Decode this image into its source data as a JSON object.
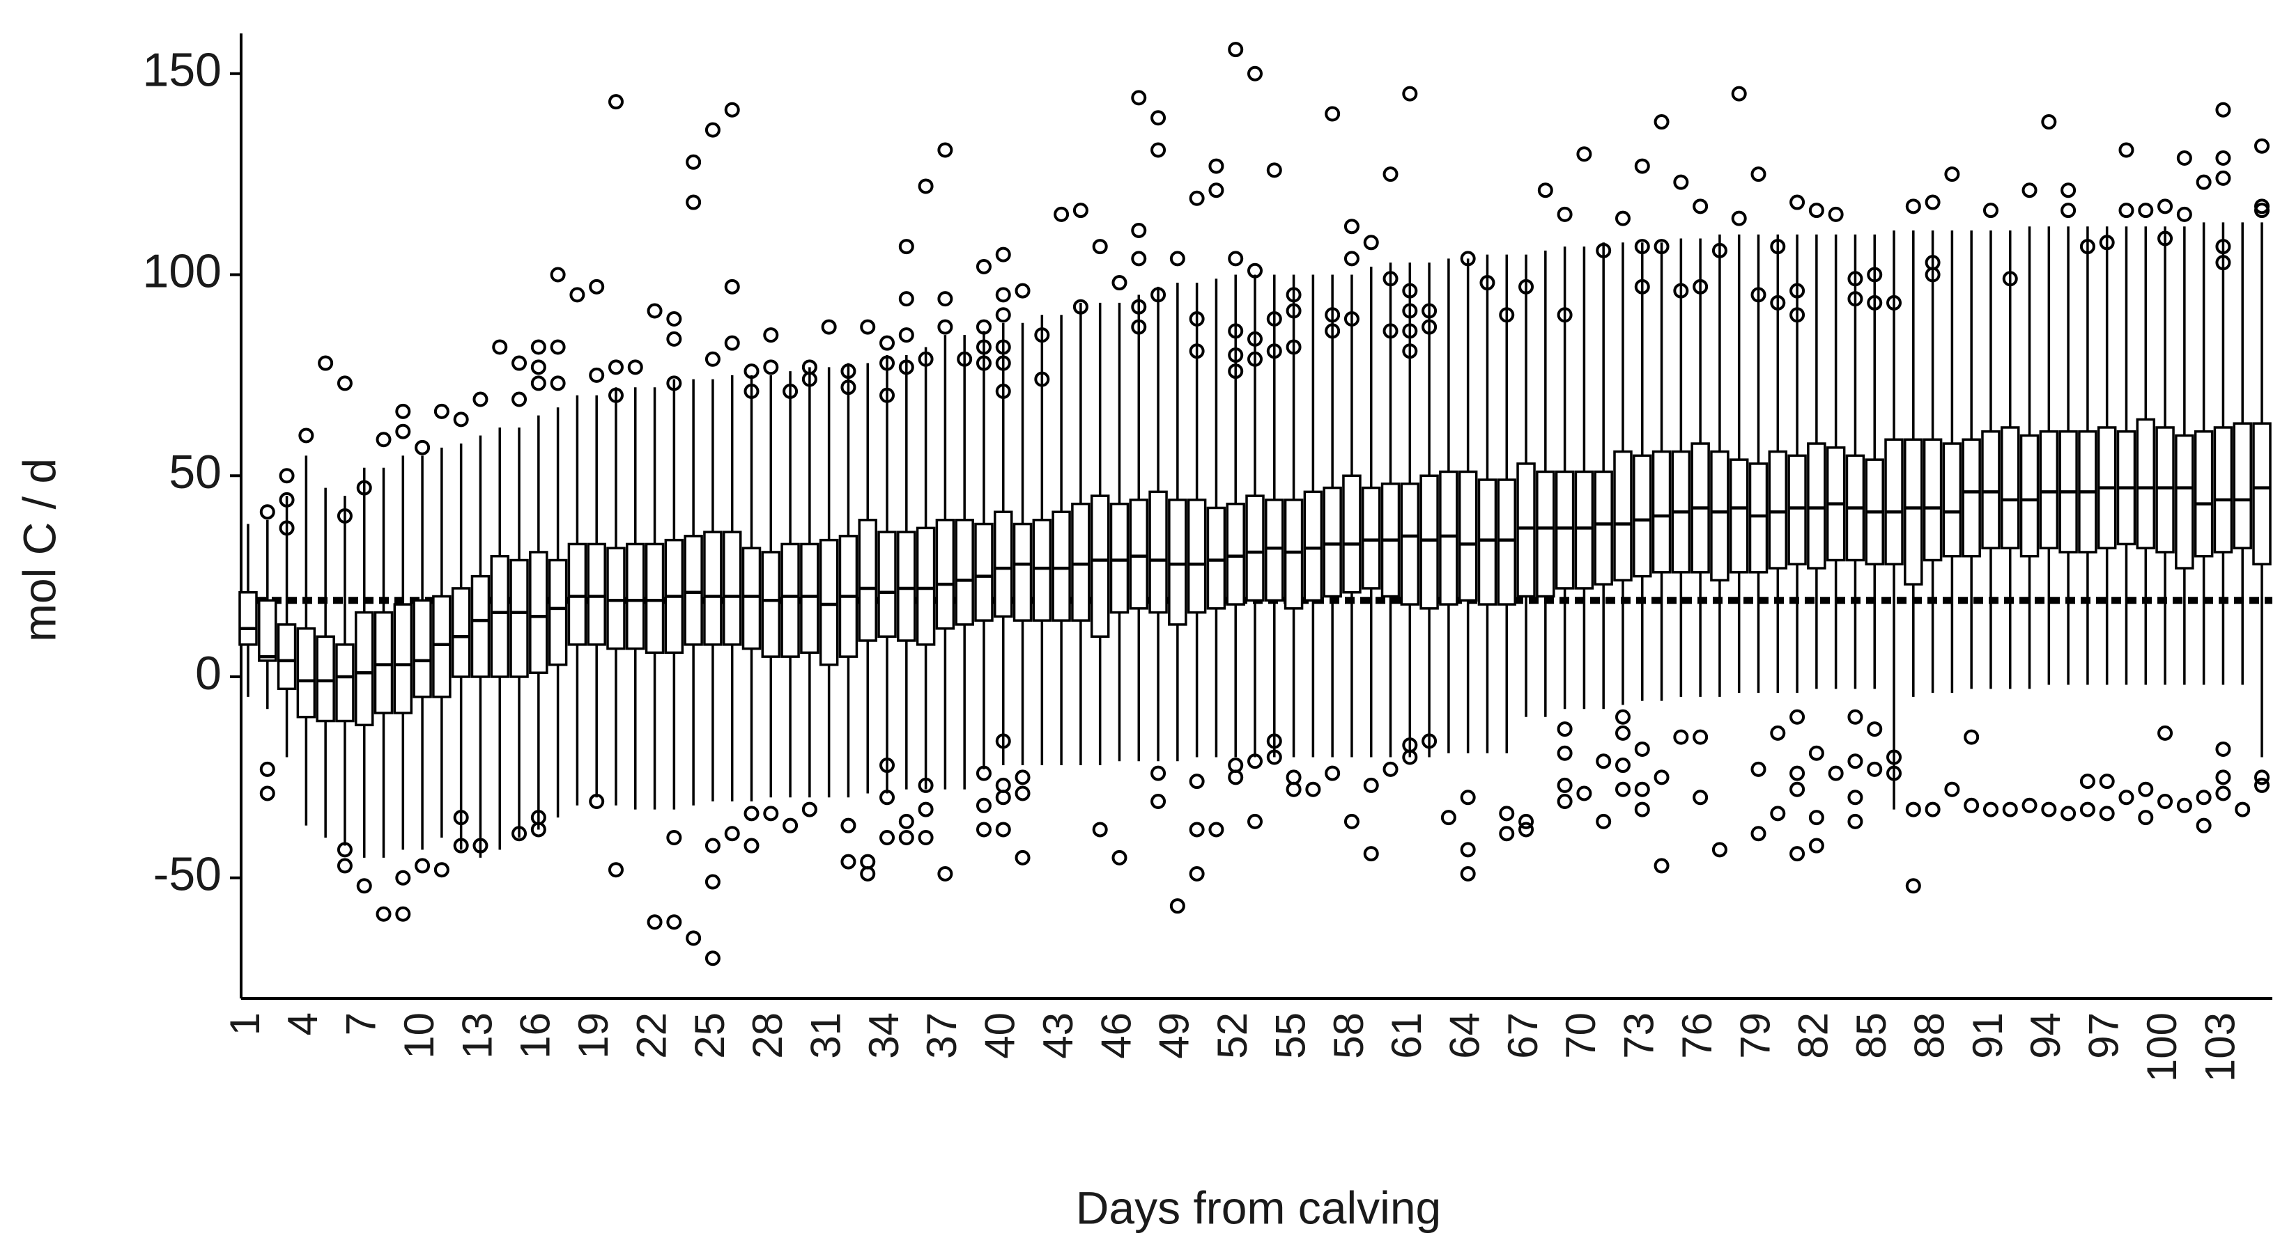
{
  "chart_data": {
    "type": "box",
    "x_label": "Days from calving",
    "y_label": "mol C / d",
    "categories": [
      "1",
      null,
      null,
      "4",
      null,
      null,
      "7",
      null,
      null,
      "10",
      null,
      null,
      "13",
      null,
      null,
      "16",
      null,
      null,
      "19",
      null,
      null,
      "22",
      null,
      null,
      "25",
      null,
      null,
      "28",
      null,
      null,
      "31",
      null,
      null,
      "34",
      null,
      null,
      "37",
      null,
      null,
      "40",
      null,
      null,
      "43",
      null,
      null,
      "46",
      null,
      null,
      "49",
      null,
      null,
      "52",
      null,
      null,
      "55",
      null,
      null,
      "58",
      null,
      null,
      "61",
      null,
      null,
      "64",
      null,
      null,
      "67",
      null,
      null,
      "70",
      null,
      null,
      "73",
      null,
      null,
      "76",
      null,
      null,
      "79",
      null,
      null,
      "82",
      null,
      null,
      "85",
      null,
      null,
      "88",
      null,
      null,
      "91",
      null,
      null,
      "94",
      null,
      null,
      "97",
      null,
      null,
      "100",
      null,
      null,
      "103",
      null,
      null
    ],
    "low": [
      -5,
      -8,
      -20,
      -37,
      -40,
      -42,
      -45,
      -45,
      -43,
      -43,
      -40,
      -43,
      -45,
      -43,
      -40,
      -38,
      -35,
      -32,
      -30,
      -32,
      -33,
      -33,
      -33,
      -32,
      -31,
      -31,
      -31,
      -30,
      -30,
      -30,
      -30,
      -30,
      -29,
      -29,
      -28,
      -28,
      -28,
      -28,
      -23,
      -22,
      -22,
      -22,
      -22,
      -22,
      -22,
      -21,
      -21,
      -21,
      -21,
      -20,
      -20,
      -20,
      -20,
      -20,
      -20,
      -20,
      -20,
      -20,
      -20,
      -20,
      -20,
      -20,
      -19,
      -19,
      -19,
      -19,
      -10,
      -10,
      -8,
      -8,
      -8,
      -7,
      -6,
      -6,
      -5,
      -5,
      -5,
      -4,
      -4,
      -4,
      -4,
      -3,
      -3,
      -3,
      -3,
      -33,
      -5,
      -4,
      -4,
      -3,
      -3,
      -3,
      -3,
      -2,
      -2,
      -2,
      -2,
      -2,
      -2,
      -2,
      -2,
      -2,
      -2,
      -2,
      -20
    ],
    "q1": [
      8,
      4,
      -3,
      -10,
      -11,
      -11,
      -12,
      -9,
      -9,
      -5,
      -5,
      0,
      0,
      0,
      0,
      1,
      3,
      8,
      8,
      7,
      7,
      6,
      6,
      8,
      8,
      8,
      7,
      5,
      5,
      6,
      3,
      5,
      9,
      10,
      9,
      8,
      12,
      13,
      14,
      15,
      14,
      14,
      14,
      14,
      10,
      16,
      17,
      16,
      13,
      16,
      17,
      18,
      19,
      19,
      17,
      19,
      20,
      21,
      22,
      20,
      18,
      17,
      18,
      19,
      18,
      18,
      20,
      20,
      22,
      22,
      23,
      24,
      25,
      26,
      26,
      26,
      24,
      26,
      26,
      27,
      28,
      27,
      29,
      29,
      28,
      28,
      23,
      29,
      30,
      30,
      32,
      32,
      30,
      32,
      31,
      31,
      32,
      33,
      32,
      31,
      27,
      30,
      31,
      32,
      28
    ],
    "median": [
      12,
      5,
      4,
      -1,
      -1,
      0,
      1,
      3,
      3,
      4,
      8,
      10,
      14,
      16,
      16,
      15,
      17,
      20,
      20,
      19,
      19,
      19,
      20,
      21,
      20,
      20,
      20,
      19,
      20,
      20,
      18,
      20,
      22,
      21,
      22,
      22,
      23,
      24,
      25,
      27,
      28,
      27,
      27,
      28,
      29,
      29,
      30,
      29,
      28,
      28,
      29,
      30,
      31,
      32,
      31,
      32,
      33,
      33,
      34,
      34,
      35,
      34,
      35,
      33,
      34,
      34,
      37,
      37,
      37,
      37,
      38,
      38,
      39,
      40,
      41,
      42,
      41,
      42,
      40,
      41,
      42,
      42,
      43,
      42,
      41,
      41,
      42,
      42,
      41,
      46,
      46,
      44,
      44,
      46,
      46,
      46,
      47,
      47,
      47,
      47,
      47,
      43,
      44,
      44,
      47
    ],
    "q3": [
      21,
      19,
      13,
      12,
      10,
      8,
      16,
      16,
      18,
      19,
      20,
      22,
      25,
      30,
      29,
      31,
      29,
      33,
      33,
      32,
      33,
      33,
      34,
      35,
      36,
      36,
      32,
      31,
      33,
      33,
      34,
      35,
      39,
      36,
      36,
      37,
      39,
      39,
      38,
      41,
      38,
      39,
      41,
      43,
      45,
      43,
      44,
      46,
      44,
      44,
      42,
      43,
      45,
      44,
      44,
      46,
      47,
      50,
      47,
      48,
      48,
      50,
      51,
      51,
      49,
      49,
      53,
      51,
      51,
      51,
      51,
      56,
      55,
      56,
      56,
      58,
      56,
      54,
      53,
      56,
      55,
      58,
      57,
      55,
      54,
      59,
      59,
      59,
      58,
      59,
      61,
      62,
      60,
      61,
      61,
      61,
      62,
      61,
      64,
      62,
      60,
      61,
      62,
      63,
      63
    ],
    "high": [
      38,
      39,
      45,
      55,
      47,
      45,
      52,
      52,
      55,
      55,
      57,
      58,
      60,
      62,
      62,
      65,
      67,
      70,
      70,
      72,
      72,
      72,
      74,
      74,
      74,
      75,
      75,
      75,
      76,
      77,
      77,
      78,
      78,
      80,
      80,
      82,
      85,
      85,
      86,
      88,
      88,
      90,
      90,
      93,
      93,
      93,
      95,
      97,
      98,
      98,
      99,
      100,
      100,
      100,
      100,
      100,
      100,
      100,
      102,
      103,
      103,
      103,
      104,
      104,
      105,
      105,
      105,
      106,
      107,
      107,
      108,
      108,
      108,
      108,
      109,
      109,
      110,
      110,
      110,
      110,
      110,
      110,
      110,
      110,
      110,
      111,
      111,
      111,
      111,
      111,
      111,
      111,
      112,
      112,
      112,
      112,
      112,
      112,
      112,
      112,
      112,
      113,
      113,
      113,
      113
    ],
    "outliers": [
      [],
      [
        41,
        -23,
        -29
      ],
      [
        50,
        44,
        37
      ],
      [
        60
      ],
      [
        78
      ],
      [
        73,
        40,
        -43,
        -47
      ],
      [
        47,
        -52
      ],
      [
        59,
        -59
      ],
      [
        61,
        66,
        -50,
        -59
      ],
      [
        57,
        -47
      ],
      [
        66,
        -48
      ],
      [
        64,
        -35,
        -42
      ],
      [
        69,
        -42
      ],
      [
        82
      ],
      [
        69,
        78,
        -39
      ],
      [
        82,
        77,
        73,
        -35,
        -38
      ],
      [
        100,
        82,
        73
      ],
      [
        95
      ],
      [
        97,
        75,
        -31
      ],
      [
        143,
        70,
        77,
        -48
      ],
      [
        77
      ],
      [
        91,
        -61
      ],
      [
        89,
        84,
        73,
        -40,
        -61
      ],
      [
        128,
        118,
        -65
      ],
      [
        136,
        79,
        -51,
        -42,
        -70
      ],
      [
        141,
        97,
        83,
        -39
      ],
      [
        76,
        71,
        -34,
        -42
      ],
      [
        85,
        77,
        -34
      ],
      [
        71,
        -37
      ],
      [
        77,
        74,
        -33
      ],
      [
        87
      ],
      [
        76,
        72,
        -37,
        -46
      ],
      [
        87,
        -49,
        -46
      ],
      [
        83,
        78,
        70,
        -22,
        -30,
        -40
      ],
      [
        107,
        94,
        85,
        77,
        -40,
        -36
      ],
      [
        122,
        79,
        -33,
        -40,
        -27
      ],
      [
        131,
        94,
        87,
        -49
      ],
      [
        79
      ],
      [
        102,
        87,
        82,
        78,
        -24,
        -32,
        -38
      ],
      [
        105,
        95,
        90,
        82,
        78,
        71,
        -16,
        -27,
        -30,
        -38
      ],
      [
        96,
        -25,
        -29,
        -45
      ],
      [
        85,
        74
      ],
      [
        115
      ],
      [
        116,
        92
      ],
      [
        107,
        -38
      ],
      [
        98,
        -45
      ],
      [
        144,
        111,
        104,
        92,
        87
      ],
      [
        139,
        131,
        95,
        -24,
        -31
      ],
      [
        104,
        -57
      ],
      [
        119,
        89,
        81,
        -26,
        -38,
        -49
      ],
      [
        127,
        121,
        -38
      ],
      [
        156,
        104,
        86,
        80,
        76,
        -22,
        -25
      ],
      [
        150,
        101,
        84,
        79,
        -21,
        -36
      ],
      [
        126,
        89,
        81,
        -16,
        -20
      ],
      [
        95,
        91,
        82,
        -25,
        -28
      ],
      [
        -28
      ],
      [
        140,
        90,
        86,
        -24
      ],
      [
        112,
        104,
        89,
        -36
      ],
      [
        108,
        -27,
        -44
      ],
      [
        125,
        99,
        86,
        -23
      ],
      [
        145,
        96,
        91,
        86,
        81,
        -20,
        -17
      ],
      [
        91,
        87,
        -16
      ],
      [
        -35
      ],
      [
        104,
        -30,
        -43,
        -49
      ],
      [
        98
      ],
      [
        90,
        -34,
        -39
      ],
      [
        97,
        -36,
        -38
      ],
      [
        121
      ],
      [
        115,
        90,
        -13,
        -19,
        -27,
        -31
      ],
      [
        130,
        -29
      ],
      [
        106,
        -21,
        -36
      ],
      [
        114,
        -10,
        -14,
        -22,
        -28
      ],
      [
        127,
        107,
        97,
        -18,
        -28,
        -33
      ],
      [
        138,
        107,
        -25,
        -47
      ],
      [
        123,
        96,
        -15
      ],
      [
        117,
        97,
        -15,
        -30
      ],
      [
        106,
        -43
      ],
      [
        145,
        114
      ],
      [
        125,
        95,
        -23,
        -39
      ],
      [
        107,
        93,
        -14,
        -34
      ],
      [
        118,
        96,
        90,
        -10,
        -24,
        -28,
        -44
      ],
      [
        116,
        -19,
        -35,
        -42
      ],
      [
        115,
        -24
      ],
      [
        99,
        94,
        -10,
        -21,
        -30,
        -36
      ],
      [
        100,
        93,
        -13,
        -23
      ],
      [
        93,
        -20,
        -24
      ],
      [
        117,
        -33,
        -52
      ],
      [
        118,
        103,
        100,
        -33
      ],
      [
        125,
        -28
      ],
      [
        -15,
        -32
      ],
      [
        116,
        -33
      ],
      [
        99,
        -33
      ],
      [
        121,
        -32
      ],
      [
        138,
        -33
      ],
      [
        116,
        121,
        -34
      ],
      [
        107,
        -26,
        -33
      ],
      [
        108,
        -26,
        -34
      ],
      [
        131,
        116,
        -30
      ],
      [
        116,
        -28,
        -35
      ],
      [
        117,
        109,
        -14,
        -31
      ],
      [
        129,
        115,
        -32
      ],
      [
        123,
        -30,
        -37
      ],
      [
        124,
        141,
        129,
        107,
        103,
        -18,
        -25,
        -29
      ],
      [
        -33
      ],
      [
        117,
        116,
        132,
        -25,
        -27
      ]
    ],
    "reference_line": 19,
    "color": "#000000",
    "ylim": [
      -80,
      160
    ],
    "yticks": [
      -50,
      0,
      50,
      100,
      150
    ]
  }
}
